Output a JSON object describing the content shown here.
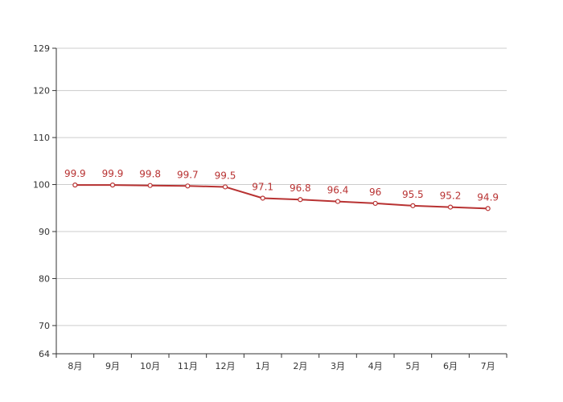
{
  "chart_data": {
    "type": "line",
    "categories": [
      "8月",
      "9月",
      "10月",
      "11月",
      "12月",
      "1月",
      "2月",
      "3月",
      "4月",
      "5月",
      "6月",
      "7月"
    ],
    "series": [
      {
        "values": [
          99.9,
          99.9,
          99.8,
          99.7,
          99.5,
          97.1,
          96.8,
          96.4,
          96,
          95.5,
          95.2,
          94.9
        ],
        "labels": [
          "99.9",
          "99.9",
          "99.8",
          "99.7",
          "99.5",
          "97.1",
          "96.8",
          "96.4",
          "96",
          "95.5",
          "95.2",
          "94.9"
        ],
        "color": "#b83232"
      }
    ],
    "yticks": [
      64,
      70,
      80,
      90,
      100,
      110,
      120,
      129
    ],
    "ytick_labels": [
      "64",
      "70",
      "80",
      "90",
      "100",
      "110",
      "120",
      "129"
    ],
    "ylim": [
      64,
      129
    ],
    "grid": true,
    "colors": {
      "line": "#b83232",
      "grid": "#cccccc",
      "axis": "#333333"
    }
  }
}
